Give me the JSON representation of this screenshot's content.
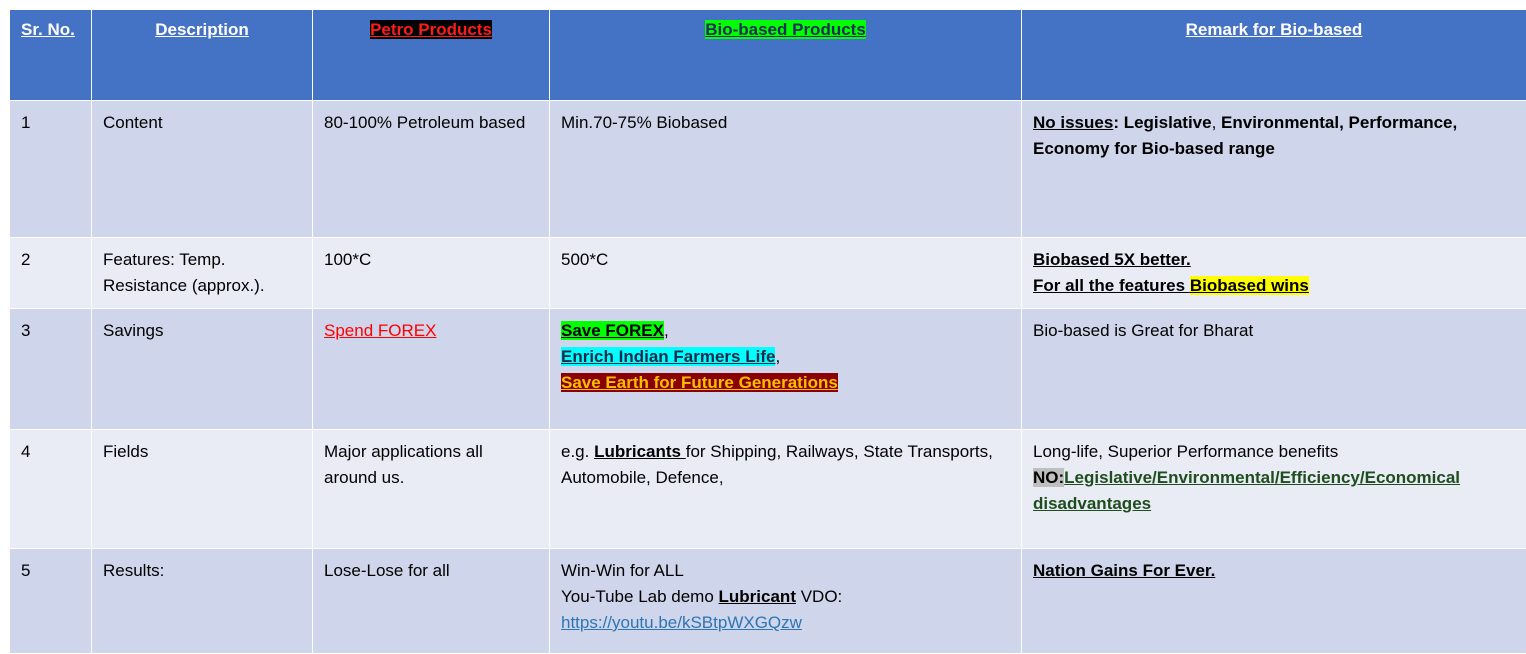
{
  "headers": {
    "sr_no": "Sr. No.",
    "description": "Description",
    "petro": "Petro Products",
    "bio": "Bio-based Products",
    "remark": "Remark for Bio-based"
  },
  "colors": {
    "header_bg": "#4472c4",
    "row_odd_bg": "#cfd5ea",
    "row_even_bg": "#e9ebf5"
  },
  "rows": [
    {
      "no": "1",
      "desc": "Content",
      "petro": "80-100% Petroleum based",
      "bio": "Min.70-75% Biobased",
      "remark": {
        "lead": "No issues",
        "sep": ": ",
        "p1": "Legislative",
        "c1": ", ",
        "p2": "Environmental, Performance, Economy for Bio-based range"
      }
    },
    {
      "no": "2",
      "desc": "Features: Temp. Resistance (approx.).",
      "petro": "100*C",
      "bio": "500*C",
      "remark": {
        "line1": "Biobased 5X better.",
        "line2_pre": "For all the features ",
        "line2_hl": "Biobased wins"
      }
    },
    {
      "no": "3",
      "desc": "Savings",
      "petro": "Spend FOREX",
      "bio": {
        "save_forex": "Save FOREX",
        "enrich": "Enrich Indian Farmers Life",
        "save_earth": "Save Earth for Future Generations"
      },
      "remark": "Bio-based is Great for Bharat"
    },
    {
      "no": "4",
      "desc": "Fields",
      "petro": "Major applications all around us.",
      "bio": {
        "pre": "e.g. ",
        "bold": "Lubricants ",
        "post": "for Shipping, Railways, State Transports, Automobile, Defence,"
      },
      "remark": {
        "line1": "Long-life, Superior Performance benefits",
        "no_label": "NO:",
        "list": "Legislative/Environmental/Efficiency/Economical disadvantages"
      }
    },
    {
      "no": "5",
      "desc": "Results:",
      "petro": "Lose-Lose for all",
      "bio": {
        "line1": "Win-Win for ALL",
        "line2_pre": "You-Tube Lab demo ",
        "line2_bold": "Lubricant",
        "line2_post": " VDO:",
        "link": "https://youtu.be/kSBtpWXGQzw"
      },
      "remark": "Nation Gains For Ever."
    }
  ]
}
